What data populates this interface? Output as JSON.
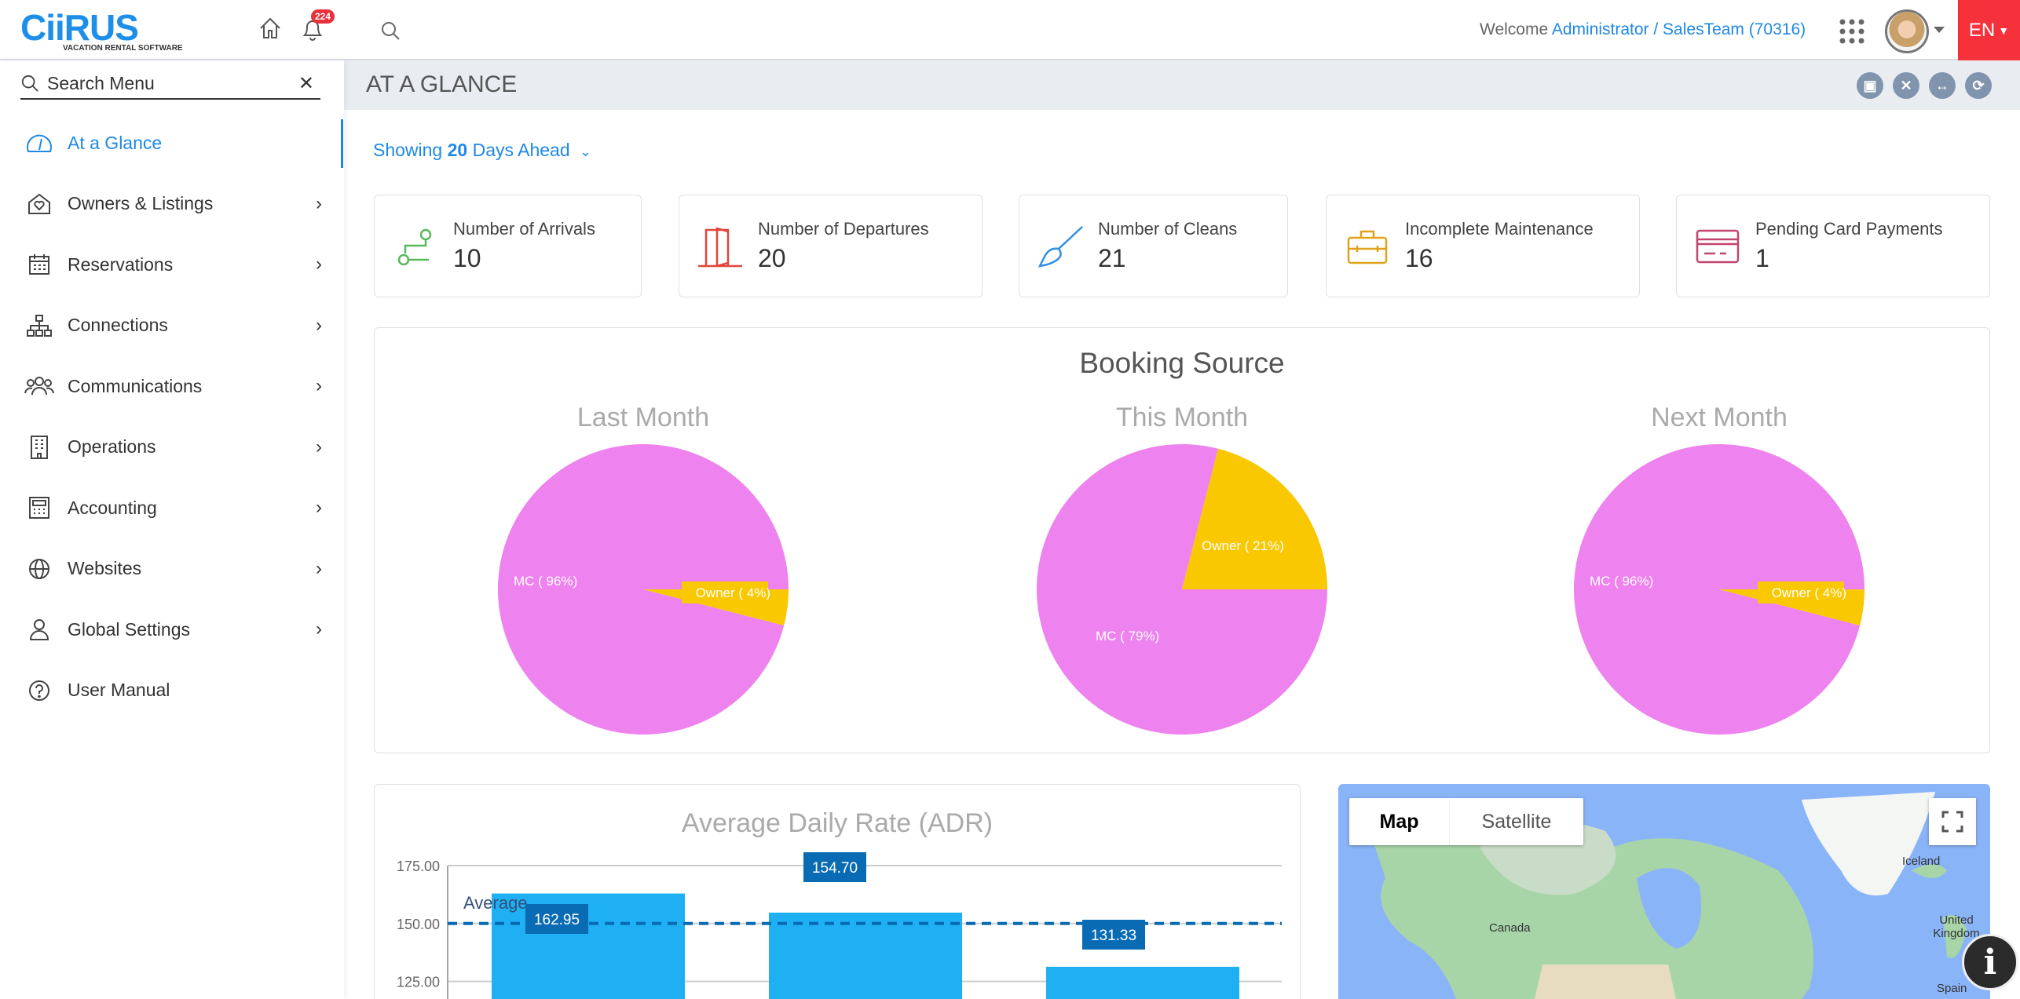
{
  "header": {
    "logo_text": "CiiRUS",
    "logo_tagline": "VACATION RENTAL SOFTWARE",
    "notification_count": "224",
    "welcome": "Welcome",
    "user": "Administrator / SalesTeam (70316)",
    "language": "EN"
  },
  "sidebar": {
    "search_placeholder": "Search Menu",
    "items": [
      {
        "label": "At a Glance",
        "icon": "dashboard-gauge-icon",
        "active": true
      },
      {
        "label": "Owners & Listings",
        "icon": "house-heart-icon"
      },
      {
        "label": "Reservations",
        "icon": "calendar-icon"
      },
      {
        "label": "Connections",
        "icon": "sitemap-icon"
      },
      {
        "label": "Communications",
        "icon": "users-icon"
      },
      {
        "label": "Operations",
        "icon": "building-icon"
      },
      {
        "label": "Accounting",
        "icon": "calculator-icon"
      },
      {
        "label": "Websites",
        "icon": "globe-icon"
      },
      {
        "label": "Global Settings",
        "icon": "user-icon"
      },
      {
        "label": "User Manual",
        "icon": "question-circle-icon"
      }
    ]
  },
  "page": {
    "title": "AT A GLANCE",
    "showing_prefix": "Showing",
    "showing_days": "20",
    "showing_suffix": "Days Ahead"
  },
  "cards": [
    {
      "label": "Number of Arrivals",
      "value": "10",
      "color": "#5cb85c"
    },
    {
      "label": "Number of Departures",
      "value": "20",
      "color": "#e0473b"
    },
    {
      "label": "Number of Cleans",
      "value": "21",
      "color": "#2f8ee5"
    },
    {
      "label": "Incomplete Maintenance",
      "value": "16",
      "color": "#e0a21b"
    },
    {
      "label": "Pending Card Payments",
      "value": "1",
      "color": "#c2456f"
    }
  ],
  "chart_data": [
    {
      "type": "pie",
      "title": "Booking Source",
      "subtitle": "Last Month",
      "slices": [
        {
          "label": "MC ( 96%)",
          "value": 96,
          "color": "#ee82ee"
        },
        {
          "label": "Owner ( 4%)",
          "value": 4,
          "color": "#f9c800"
        }
      ]
    },
    {
      "type": "pie",
      "title": "Booking Source",
      "subtitle": "This Month",
      "slices": [
        {
          "label": "MC ( 79%)",
          "value": 79,
          "color": "#ee82ee"
        },
        {
          "label": "Owner ( 21%)",
          "value": 21,
          "color": "#f9c800"
        }
      ]
    },
    {
      "type": "pie",
      "title": "Booking Source",
      "subtitle": "Next Month",
      "slices": [
        {
          "label": "MC ( 96%)",
          "value": 96,
          "color": "#ee82ee"
        },
        {
          "label": "Owner ( 4%)",
          "value": 4,
          "color": "#f9c800"
        }
      ]
    },
    {
      "type": "bar",
      "title": "Average Daily Rate (ADR)",
      "values": [
        162.95,
        154.7,
        131.33
      ],
      "value_labels": [
        "162.95",
        "154.70",
        "131.33"
      ],
      "yticks": [
        "175.00",
        "150.00",
        "125.00"
      ],
      "ytick_values": [
        175,
        150,
        125
      ],
      "average": 150,
      "average_label": "Average",
      "bar_color": "#1eb0f2",
      "label_color": "#0a6bb5"
    }
  ],
  "map": {
    "map_tab": "Map",
    "satellite_tab": "Satellite",
    "labels": [
      "Canada",
      "Iceland",
      "United Kingdom",
      "Spain"
    ]
  }
}
